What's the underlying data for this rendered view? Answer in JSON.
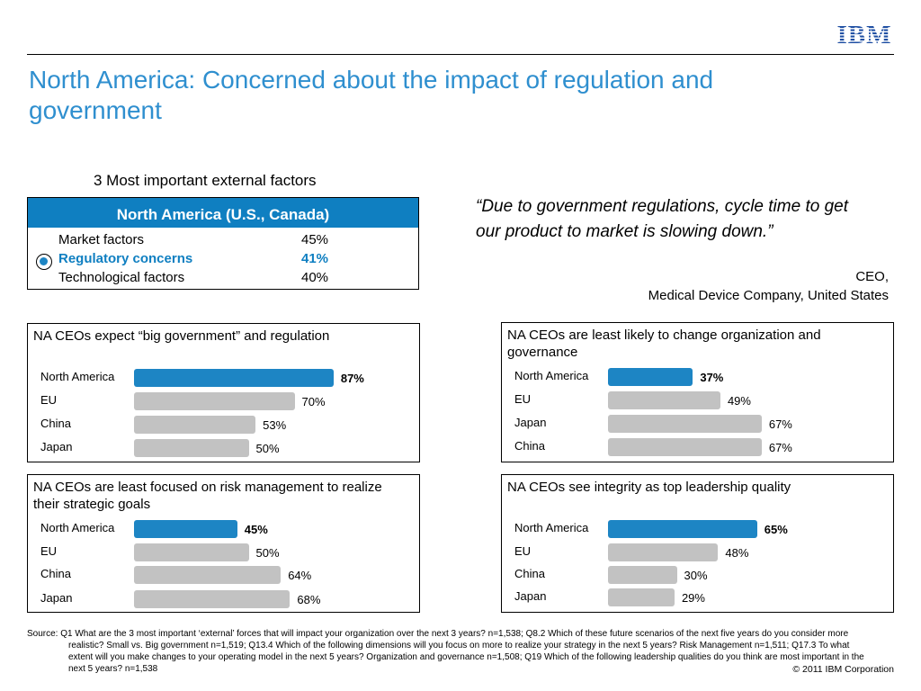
{
  "brand": "IBM",
  "title": "North America: Concerned about the impact of regulation and government",
  "factors": {
    "heading": "3 Most important external factors",
    "region": "North America (U.S., Canada)",
    "rows": [
      {
        "label": "Market factors",
        "value": "45%"
      },
      {
        "label": "Regulatory concerns",
        "value": "41%"
      },
      {
        "label": "Technological factors",
        "value": "40%"
      }
    ]
  },
  "quote": {
    "text": "“Due to government regulations, cycle time to get our product to market is slowing down.”",
    "attribution_role": "CEO,",
    "attribution_org": "Medical Device Company,  United States"
  },
  "panels": [
    {
      "title": "NA CEOs expect “big government” and regulation",
      "rows": [
        {
          "label": "North America",
          "value": 87,
          "text": "87%"
        },
        {
          "label": "EU",
          "value": 70,
          "text": "70%"
        },
        {
          "label": "China",
          "value": 53,
          "text": "53%"
        },
        {
          "label": "Japan",
          "value": 50,
          "text": "50%"
        }
      ]
    },
    {
      "title": "NA CEOs are least likely to change organization and governance",
      "rows": [
        {
          "label": "North America",
          "value": 37,
          "text": "37%"
        },
        {
          "label": "EU",
          "value": 49,
          "text": "49%"
        },
        {
          "label": "Japan",
          "value": 67,
          "text": "67%"
        },
        {
          "label": "China",
          "value": 67,
          "text": "67%"
        }
      ]
    },
    {
      "title": "NA CEOs are least focused on risk management to realize their strategic goals",
      "rows": [
        {
          "label": "North America",
          "value": 45,
          "text": "45%"
        },
        {
          "label": "EU",
          "value": 50,
          "text": "50%"
        },
        {
          "label": "China",
          "value": 64,
          "text": "64%"
        },
        {
          "label": "Japan",
          "value": 68,
          "text": "68%"
        }
      ]
    },
    {
      "title": "NA CEOs see integrity as top leadership quality",
      "rows": [
        {
          "label": "North America",
          "value": 65,
          "text": "65%"
        },
        {
          "label": "EU",
          "value": 48,
          "text": "48%"
        },
        {
          "label": "China",
          "value": 30,
          "text": "30%"
        },
        {
          "label": "Japan",
          "value": 29,
          "text": "29%"
        }
      ]
    }
  ],
  "source": "Source: Q1  What are the 3 most important ‘external’ forces that will impact your organization over the next 3 years? n=1,538; Q8.2  Which of these future scenarios of the next five years do you consider more realistic? Small vs. Big government n=1,519; Q13.4  Which of the following dimensions will you focus on more to realize your strategy in the next 5 years? Risk Management n=1,511; Q17.3  To what extent will you make changes to your operating model in the next 5 years? Organization and governance n=1,508;  Q19 Which of the following leadership qualities do you think are most important in the next 5 years? n=1,538",
  "copyright": "© 2011 IBM Corporation",
  "colors": {
    "accent": "#1d85c4",
    "title": "#2f8fcf",
    "gray_bar": "#c2c2c2"
  }
}
